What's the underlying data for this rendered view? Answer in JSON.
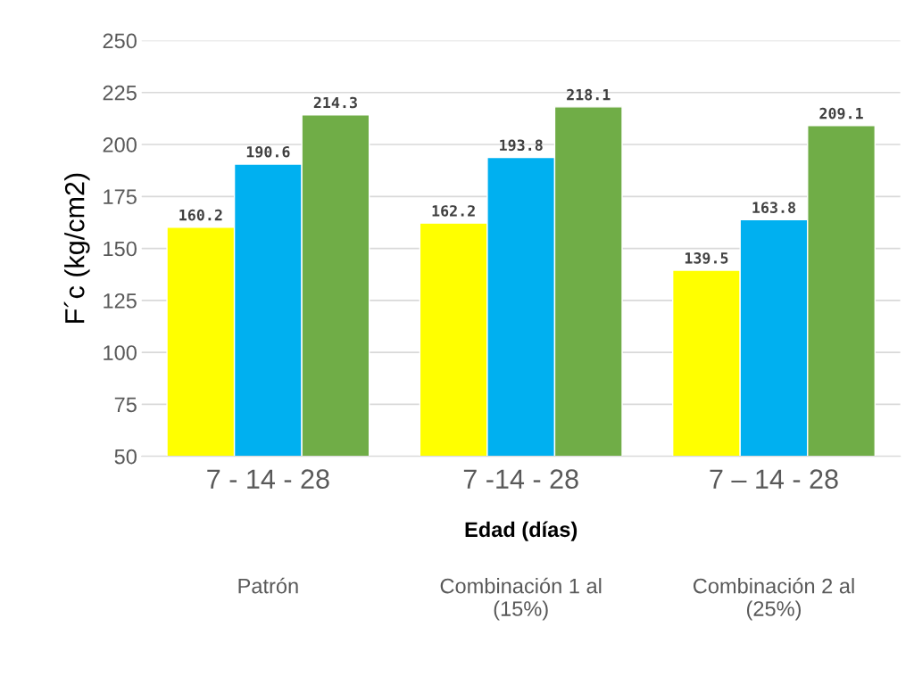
{
  "chart_data": {
    "type": "bar",
    "ylabel": "F´c (kg/cm2)",
    "xlabel": "Edad (días)",
    "categories": [
      "7 - 14 - 28",
      "7 -14 - 28",
      "7 – 14 - 28"
    ],
    "series": [
      {
        "color": "#ffff00",
        "values": [
          160.2,
          162.2,
          139.5
        ]
      },
      {
        "color": "#00b0f0",
        "values": [
          190.6,
          193.8,
          163.8
        ]
      },
      {
        "color": "#70ad47",
        "values": [
          214.3,
          218.1,
          209.1
        ]
      }
    ],
    "ylim": [
      50,
      250
    ],
    "yticks": [
      50,
      75,
      100,
      125,
      150,
      175,
      200,
      225,
      250
    ],
    "grid": "y",
    "data_labels": true,
    "annotations": [
      "Patrón",
      "Combinación 1 al\n(15%)",
      "Combinación 2 al\n(25%)"
    ]
  }
}
